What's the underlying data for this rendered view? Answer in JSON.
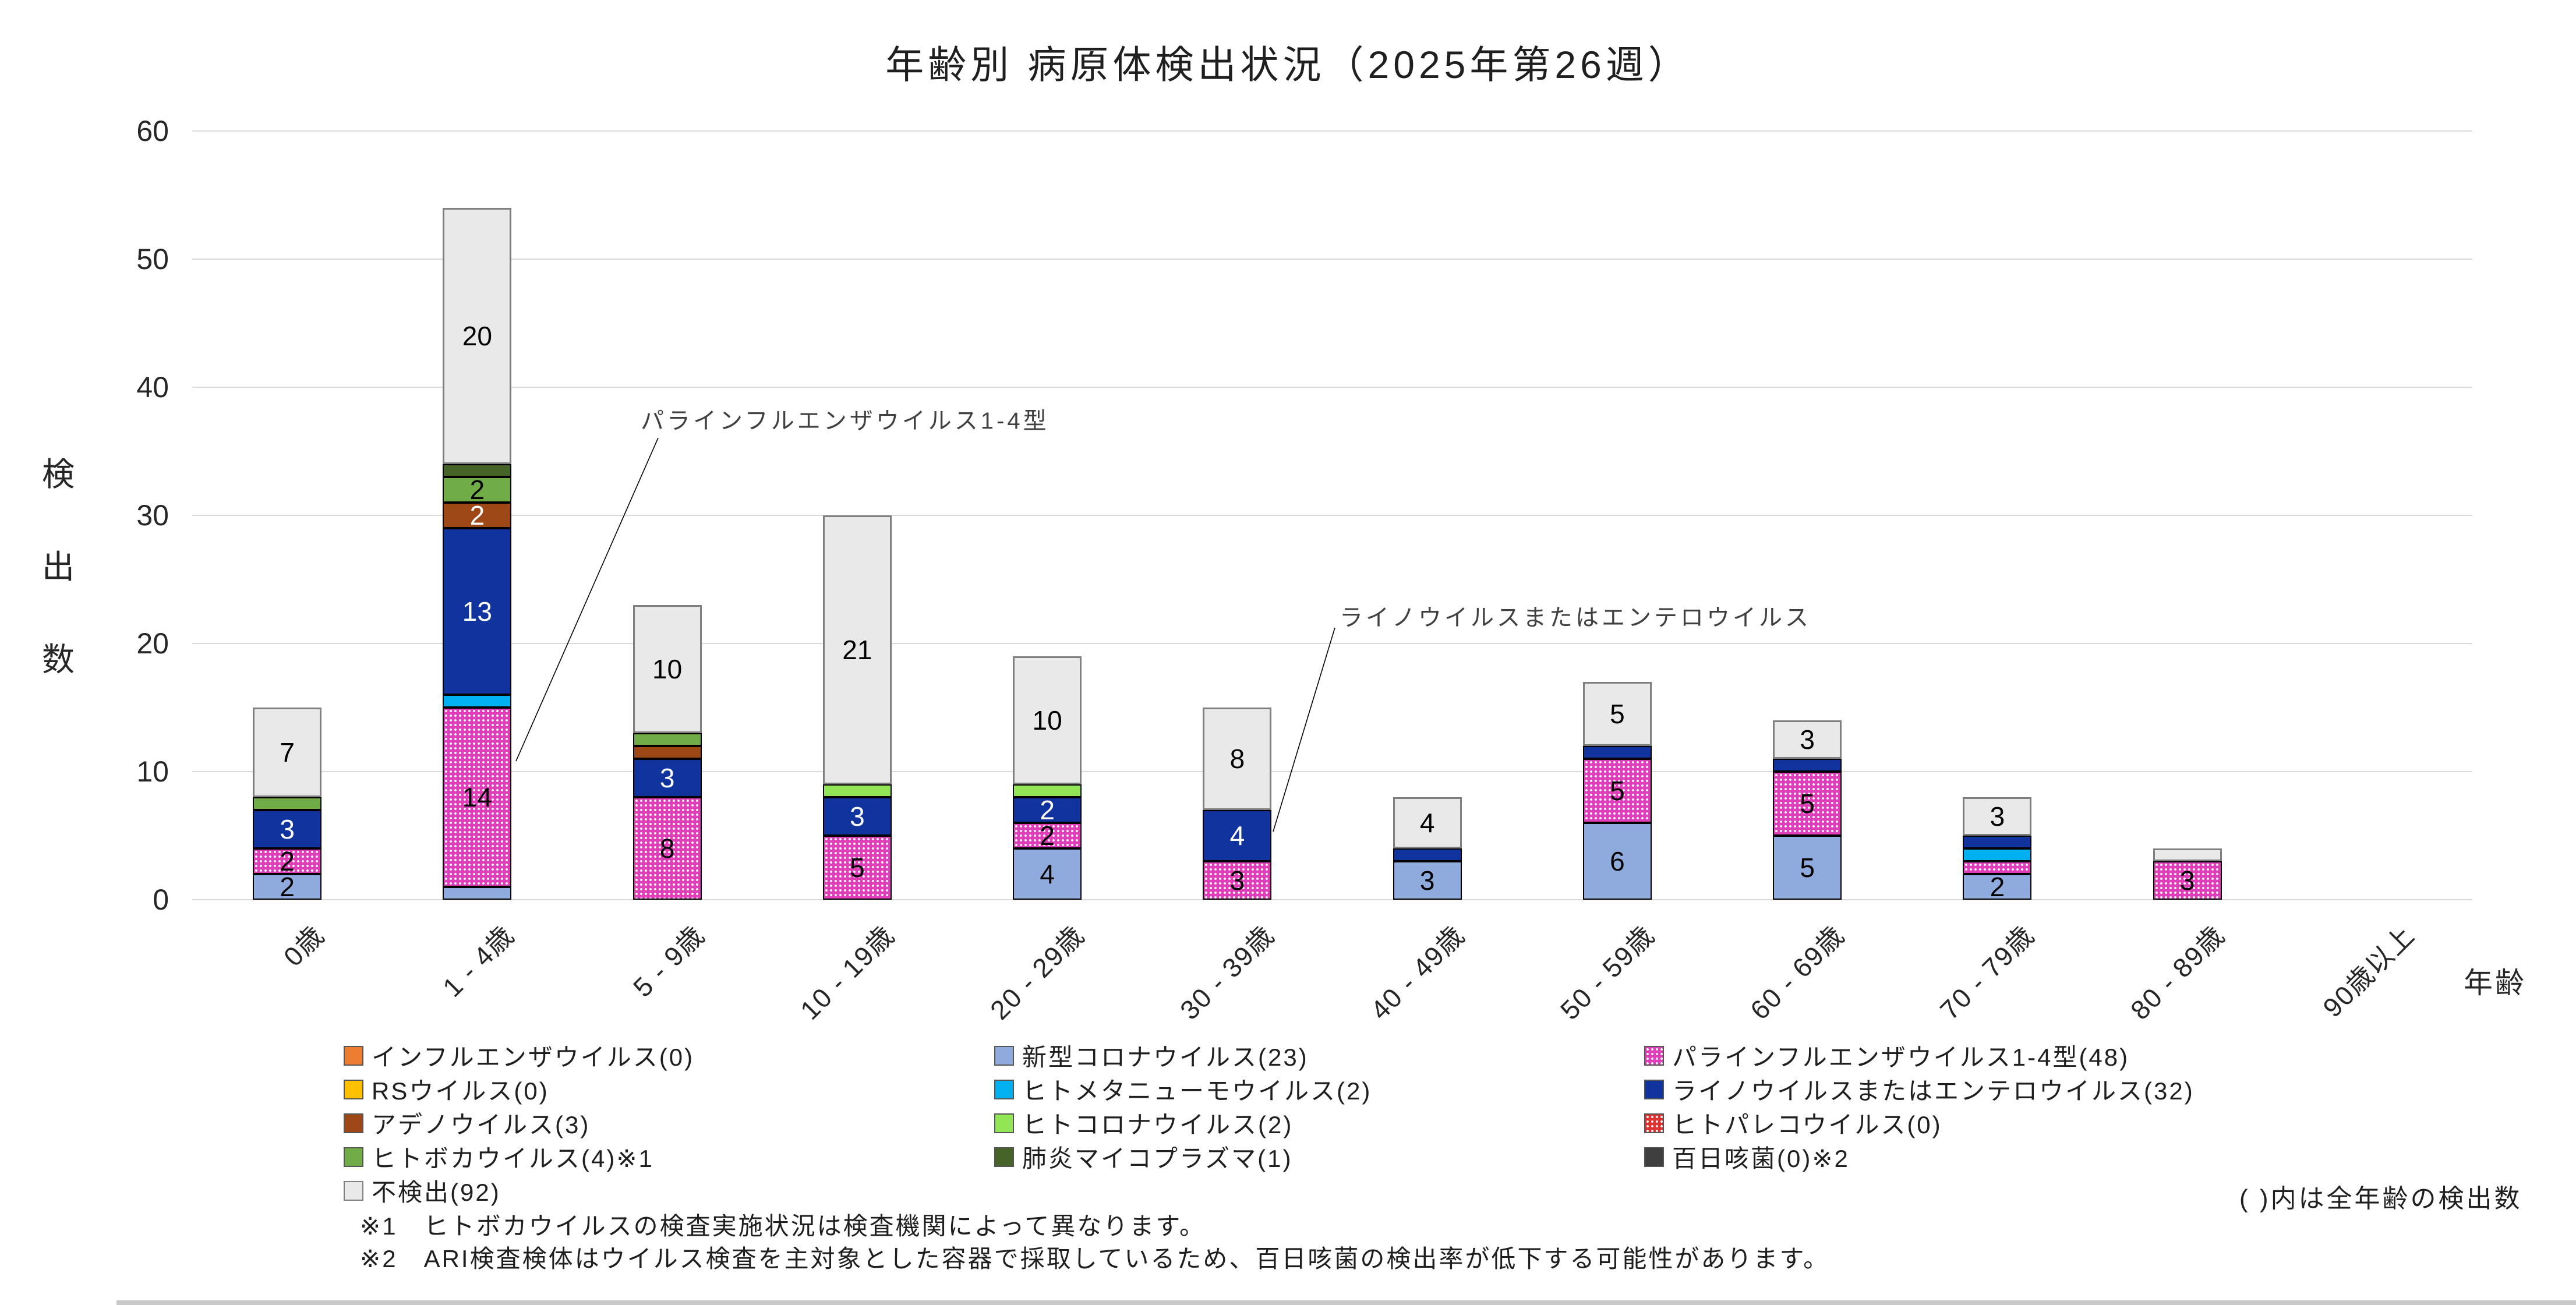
{
  "title": "年齢別 病原体検出状況（2025年第26週）",
  "y_axis": {
    "title_chars": [
      "検",
      "出",
      "数"
    ],
    "ticks": [
      0,
      10,
      20,
      30,
      40,
      50,
      60
    ],
    "max": 60
  },
  "x_axis": {
    "title": "年齢"
  },
  "chart_data": {
    "type": "bar",
    "stacked": true,
    "title": "年齢別 病原体検出状況（2025年第26週）",
    "xlabel": "年齢",
    "ylabel": "検出数",
    "ylim": [
      0,
      60
    ],
    "grid": true,
    "categories": [
      "0歳",
      "1 - 4歳",
      "5 - 9歳",
      "10 - 19歳",
      "20 - 29歳",
      "30 - 39歳",
      "40 - 49歳",
      "50 - 59歳",
      "60 - 69歳",
      "70 - 79歳",
      "80 - 89歳",
      "90歳以上"
    ],
    "series": [
      {
        "id": "influenza",
        "name": "インフルエンザウイルス",
        "total": 0,
        "color": "#ED7D31",
        "pattern": "none",
        "label_color": "#000000",
        "values": [
          0,
          0,
          0,
          0,
          0,
          0,
          0,
          0,
          0,
          0,
          0,
          0
        ]
      },
      {
        "id": "covid",
        "name": "新型コロナウイルス",
        "total": 23,
        "color": "#8FAADC",
        "pattern": "none",
        "label_color": "#000000",
        "values": [
          2,
          1,
          0,
          0,
          4,
          0,
          3,
          6,
          5,
          2,
          0,
          0
        ]
      },
      {
        "id": "parainfluenza",
        "name": "パラインフルエンザウイルス1-4型",
        "total": 48,
        "color": "#E03EB8",
        "pattern": "dots",
        "label_color": "#000000",
        "values": [
          2,
          14,
          8,
          5,
          2,
          3,
          0,
          5,
          5,
          1,
          3,
          0
        ]
      },
      {
        "id": "rs",
        "name": "RSウイルス",
        "total": 0,
        "color": "#FFC000",
        "pattern": "none",
        "label_color": "#000000",
        "values": [
          0,
          0,
          0,
          0,
          0,
          0,
          0,
          0,
          0,
          0,
          0,
          0
        ]
      },
      {
        "id": "metapneumo",
        "name": "ヒトメタニューモウイルス",
        "total": 2,
        "color": "#00B0F0",
        "pattern": "none",
        "label_color": "#000000",
        "values": [
          0,
          1,
          0,
          0,
          0,
          0,
          0,
          0,
          0,
          1,
          0,
          0
        ]
      },
      {
        "id": "rhino",
        "name": "ライノウイルスまたはエンテロウイルス",
        "total": 32,
        "color": "#10339E",
        "pattern": "none",
        "label_color": "#FFFFFF",
        "values": [
          3,
          13,
          3,
          3,
          2,
          4,
          1,
          1,
          1,
          1,
          0,
          0
        ]
      },
      {
        "id": "adeno",
        "name": "アデノウイルス",
        "total": 3,
        "color": "#9E4817",
        "pattern": "none",
        "label_color": "#FFFFFF",
        "values": [
          0,
          2,
          1,
          0,
          0,
          0,
          0,
          0,
          0,
          0,
          0,
          0
        ]
      },
      {
        "id": "hcorona",
        "name": "ヒトコロナウイルス",
        "total": 2,
        "color": "#92E656",
        "pattern": "none",
        "label_color": "#000000",
        "values": [
          0,
          0,
          0,
          1,
          1,
          0,
          0,
          0,
          0,
          0,
          0,
          0
        ]
      },
      {
        "id": "parecho",
        "name": "ヒトパレコウイルス",
        "total": 0,
        "color": "#E03030",
        "pattern": "dots",
        "label_color": "#000000",
        "values": [
          0,
          0,
          0,
          0,
          0,
          0,
          0,
          0,
          0,
          0,
          0,
          0
        ]
      },
      {
        "id": "boca",
        "name": "ヒトボカウイルス",
        "total": 4,
        "color": "#70AD47",
        "pattern": "none",
        "label_color": "#000000",
        "values": [
          1,
          2,
          1,
          0,
          0,
          0,
          0,
          0,
          0,
          0,
          0,
          0
        ]
      },
      {
        "id": "mycoplasma",
        "name": "肺炎マイコプラズマ",
        "total": 1,
        "color": "#466428",
        "pattern": "none",
        "label_color": "#000000",
        "values": [
          0,
          1,
          0,
          0,
          0,
          0,
          0,
          0,
          0,
          0,
          0,
          0
        ]
      },
      {
        "id": "pertussis",
        "name": "百日咳菌",
        "total": 0,
        "color": "#3F3F3F",
        "pattern": "none",
        "label_color": "#FFFFFF",
        "values": [
          0,
          0,
          0,
          0,
          0,
          0,
          0,
          0,
          0,
          0,
          0,
          0
        ]
      },
      {
        "id": "notdetected",
        "name": "不検出",
        "total": 92,
        "color": "#E9E9E9",
        "pattern": "none",
        "label_color": "#000000",
        "values": [
          7,
          20,
          10,
          21,
          10,
          8,
          4,
          5,
          3,
          3,
          1,
          0
        ]
      }
    ]
  },
  "annotations": [
    {
      "text": "パラインフルエンザウイルス1-4型",
      "target_series": "parainfluenza",
      "target_category": "1 - 4歳"
    },
    {
      "text": "ライノウイルスまたはエンテロウイルス",
      "target_series": "rhino",
      "target_category": "30 - 39歳"
    }
  ],
  "legend": {
    "columns": [
      [
        {
          "series": "influenza",
          "label": "インフルエンザウイルス(0)"
        },
        {
          "series": "rs",
          "label": "RSウイルス(0)"
        },
        {
          "series": "adeno",
          "label": "アデノウイルス(3)"
        },
        {
          "series": "boca",
          "label": "ヒトボカウイルス(4)※1"
        },
        {
          "series": "notdetected",
          "label": "不検出(92)"
        }
      ],
      [
        {
          "series": "covid",
          "label": "新型コロナウイルス(23)"
        },
        {
          "series": "metapneumo",
          "label": "ヒトメタニューモウイルス(2)"
        },
        {
          "series": "hcorona",
          "label": "ヒトコロナウイルス(2)"
        },
        {
          "series": "mycoplasma",
          "label": "肺炎マイコプラズマ(1)"
        }
      ],
      [
        {
          "series": "parainfluenza",
          "label": "パラインフルエンザウイルス1-4型(48)"
        },
        {
          "series": "rhino",
          "label": "ライノウイルスまたはエンテロウイルス(32)"
        },
        {
          "series": "parecho",
          "label": "ヒトパレコウイルス(0)"
        },
        {
          "series": "pertussis",
          "label": "百日咳菌(0)※2"
        }
      ]
    ]
  },
  "notes": {
    "right": "( )内は全年齢の検出数",
    "footnotes": [
      {
        "mark": "※1",
        "text": "ヒトボカウイルスの検査実施状況は検査機関によって異なります。"
      },
      {
        "mark": "※2",
        "text": "ARI検査検体はウイルス検査を主対象とした容器で採取しているため、百日咳菌の検出率が低下する可能性があります。"
      }
    ]
  },
  "colors": {
    "grid": "#D9D9D9",
    "not_detected_border": "#7F7F7F",
    "segment_border": "#000000",
    "annotation_line": "#000000"
  }
}
